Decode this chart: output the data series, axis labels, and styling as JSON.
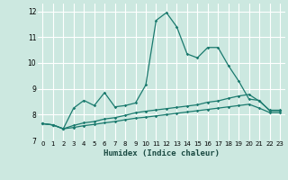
{
  "xlabel": "Humidex (Indice chaleur)",
  "bg_color": "#cce8e0",
  "grid_color": "#ffffff",
  "line_color": "#1a7a6e",
  "xlim": [
    -0.5,
    23.5
  ],
  "ylim": [
    7,
    12.3
  ],
  "x_ticks": [
    0,
    1,
    2,
    3,
    4,
    5,
    6,
    7,
    8,
    9,
    10,
    11,
    12,
    13,
    14,
    15,
    16,
    17,
    18,
    19,
    20,
    21,
    22,
    23
  ],
  "y_ticks": [
    7,
    8,
    9,
    10,
    11,
    12
  ],
  "series1_x": [
    0,
    1,
    2,
    3,
    4,
    5,
    6,
    7,
    8,
    9,
    10,
    11,
    12,
    13,
    14,
    15,
    16,
    17,
    18,
    19,
    20,
    21,
    22,
    23
  ],
  "series1_y": [
    7.65,
    7.6,
    7.45,
    8.25,
    8.55,
    8.35,
    8.85,
    8.3,
    8.35,
    8.45,
    9.15,
    11.65,
    11.95,
    11.4,
    10.35,
    10.2,
    10.6,
    10.6,
    9.9,
    9.3,
    8.6,
    8.55,
    8.15,
    8.15
  ],
  "series2_x": [
    0,
    1,
    2,
    3,
    4,
    5,
    6,
    7,
    8,
    9,
    10,
    11,
    12,
    13,
    14,
    15,
    16,
    17,
    18,
    19,
    20,
    21,
    22,
    23
  ],
  "series2_y": [
    7.65,
    7.6,
    7.45,
    7.58,
    7.68,
    7.73,
    7.83,
    7.88,
    7.97,
    8.07,
    8.13,
    8.18,
    8.23,
    8.28,
    8.33,
    8.38,
    8.48,
    8.53,
    8.63,
    8.72,
    8.78,
    8.52,
    8.17,
    8.17
  ],
  "series3_x": [
    0,
    1,
    2,
    3,
    4,
    5,
    6,
    7,
    8,
    9,
    10,
    11,
    12,
    13,
    14,
    15,
    16,
    17,
    18,
    19,
    20,
    21,
    22,
    23
  ],
  "series3_y": [
    7.65,
    7.6,
    7.45,
    7.5,
    7.57,
    7.62,
    7.68,
    7.73,
    7.8,
    7.86,
    7.9,
    7.95,
    8.0,
    8.05,
    8.1,
    8.15,
    8.2,
    8.25,
    8.3,
    8.35,
    8.4,
    8.25,
    8.08,
    8.08
  ]
}
